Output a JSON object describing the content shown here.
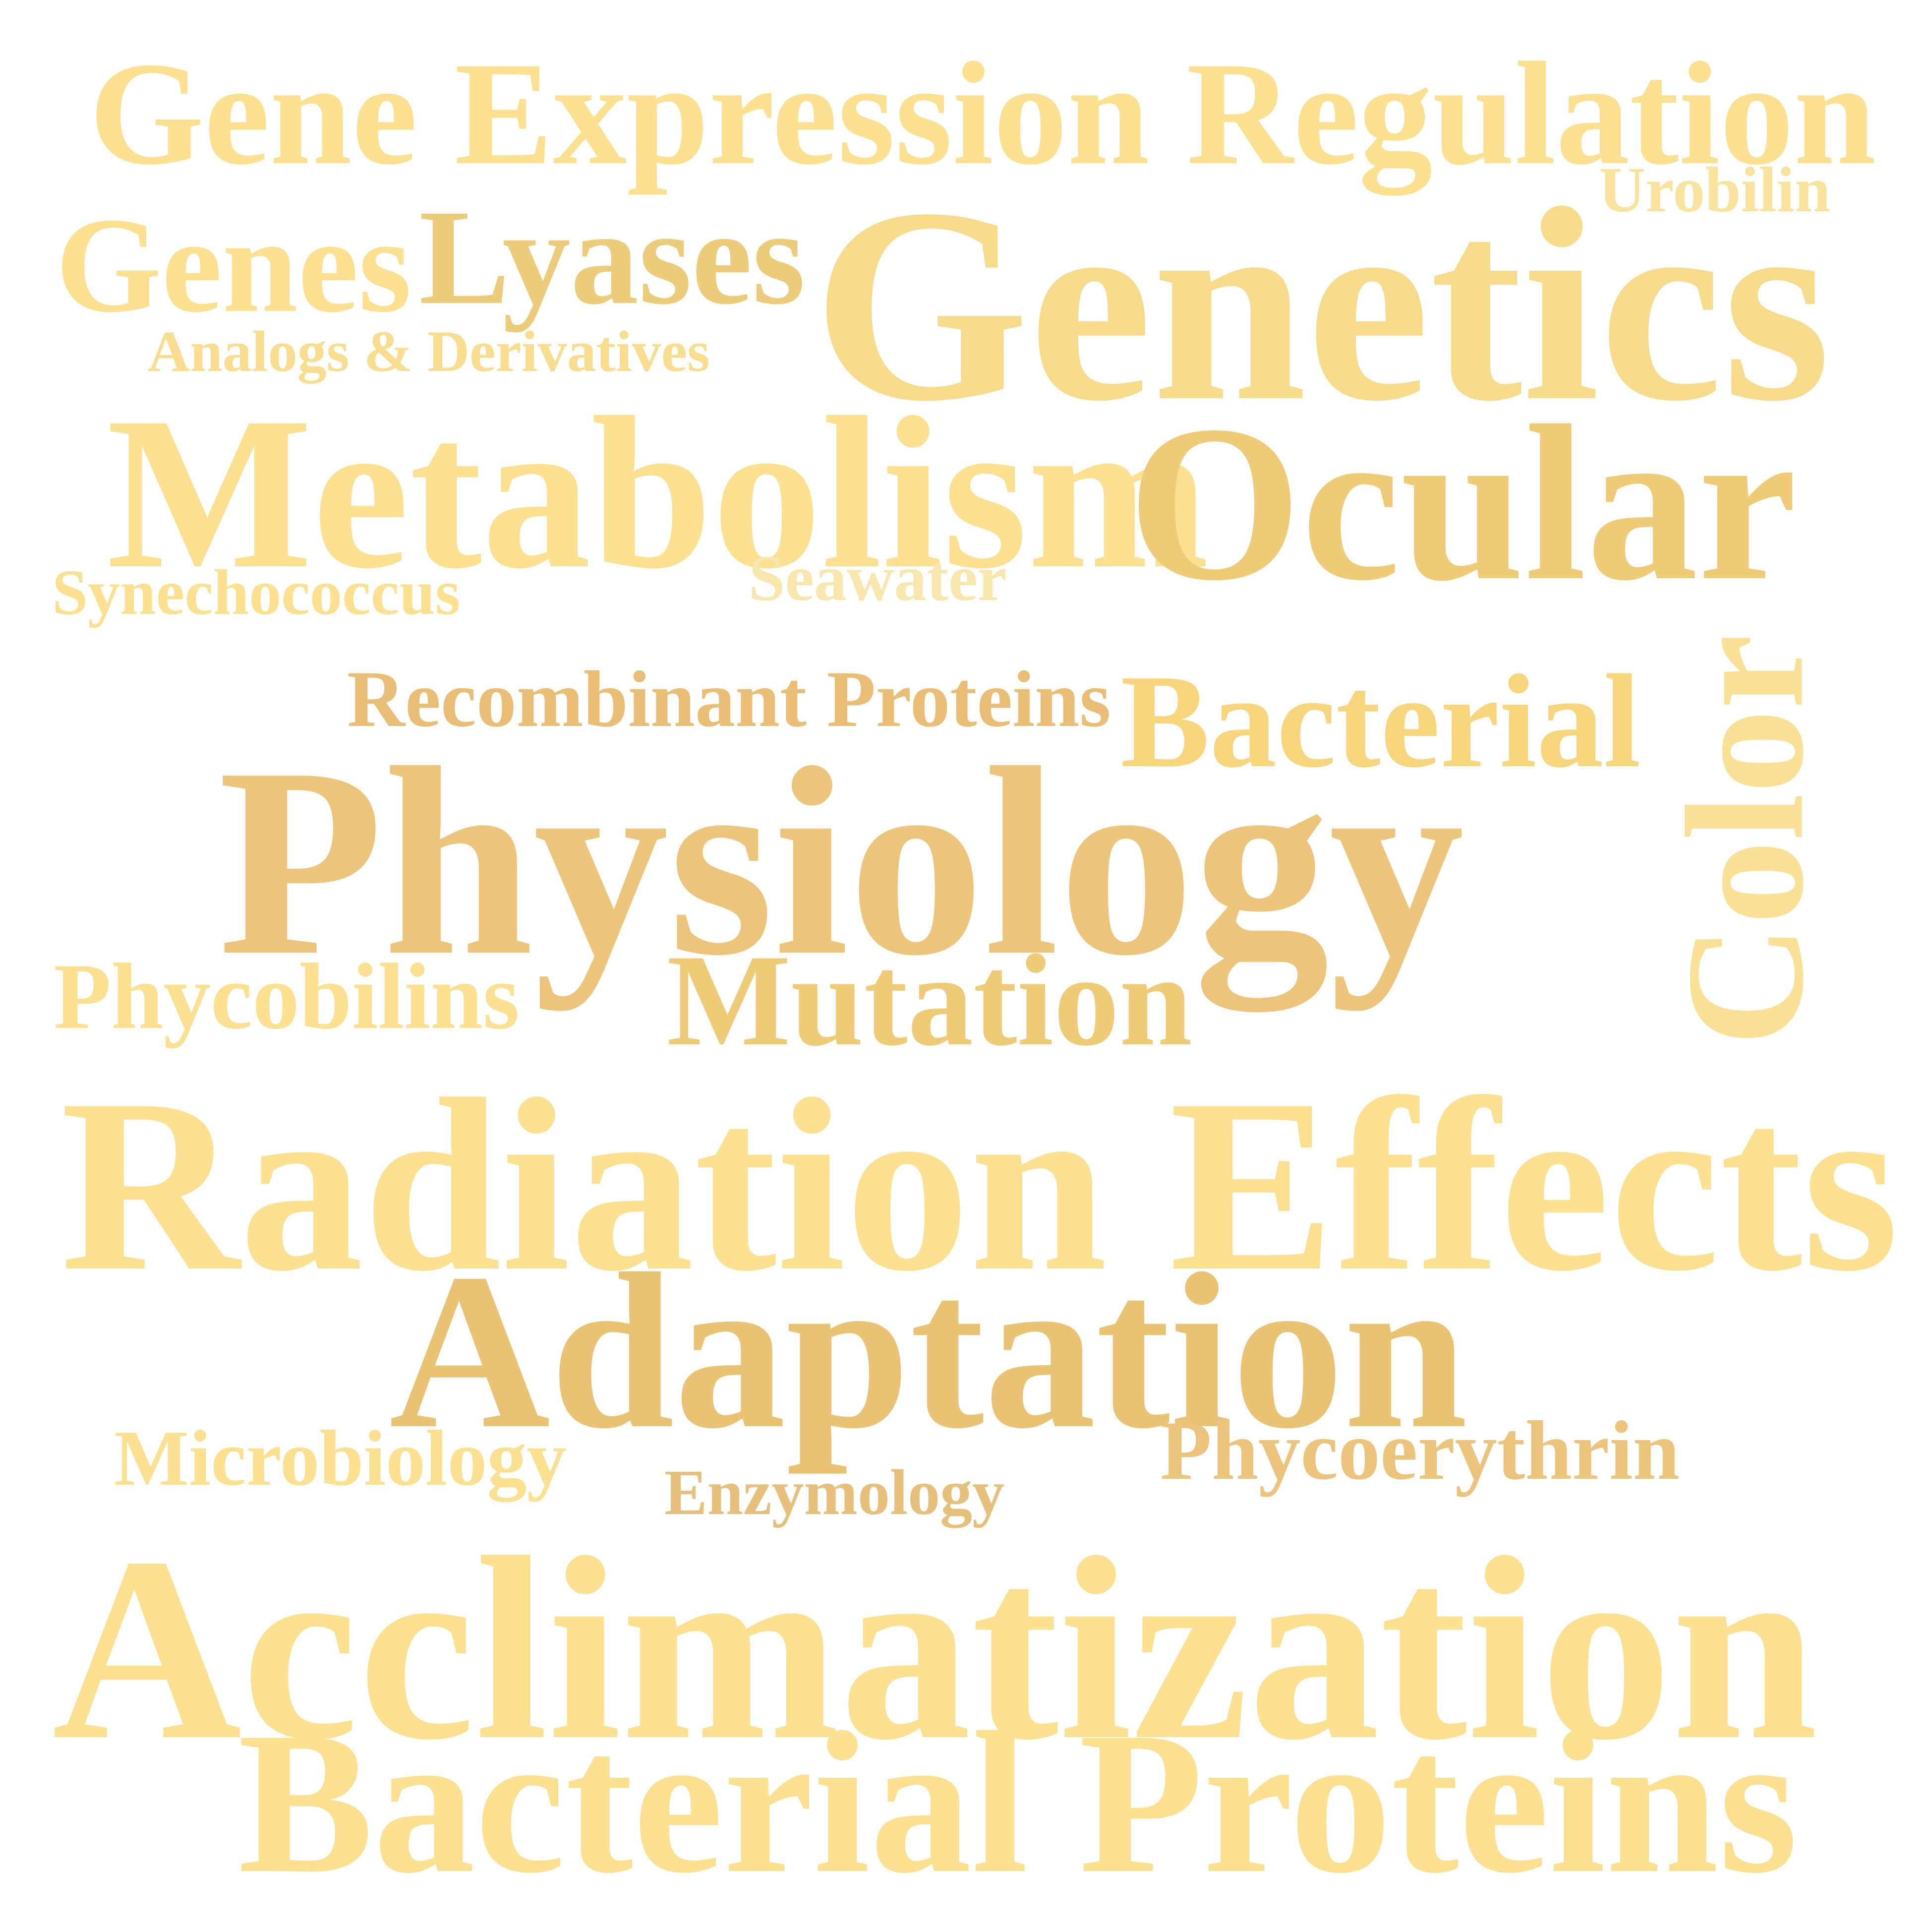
{
  "word_cloud": {
    "words": [
      {
        "id": "gene-expression-regulation",
        "text": "Gene Expression Regulation",
        "color": "#fbe08f",
        "orientation": "horizontal"
      },
      {
        "id": "urobilin",
        "text": "Urobilin",
        "color": "#f9e39c",
        "orientation": "horizontal"
      },
      {
        "id": "genes",
        "text": "Genes",
        "color": "#fbe08f",
        "orientation": "horizontal"
      },
      {
        "id": "lyases",
        "text": "Lyases",
        "color": "#eccc7b",
        "orientation": "horizontal"
      },
      {
        "id": "genetics",
        "text": "Genetics",
        "color": "#f6db8a",
        "orientation": "horizontal"
      },
      {
        "id": "analogs",
        "text": "Analogs & Derivatives",
        "color": "#f8dd8e",
        "orientation": "horizontal"
      },
      {
        "id": "metabolism",
        "text": "Metabolism",
        "color": "#fbe08f",
        "orientation": "horizontal"
      },
      {
        "id": "ocular",
        "text": "Ocular",
        "color": "#efcb78",
        "orientation": "horizontal"
      },
      {
        "id": "synechococcus",
        "text": "Synechococcus",
        "color": "#fbe08f",
        "orientation": "horizontal"
      },
      {
        "id": "seawater",
        "text": "Seawater",
        "color": "#f8e6ac",
        "orientation": "horizontal"
      },
      {
        "id": "recombinant-proteins",
        "text": "Recombinant Proteins",
        "color": "#e9bd74",
        "orientation": "horizontal"
      },
      {
        "id": "bacterial",
        "text": "Bacterial",
        "color": "#f8d57d",
        "orientation": "horizontal"
      },
      {
        "id": "color",
        "text": "Color",
        "color": "#f9e094",
        "orientation": "vertical"
      },
      {
        "id": "physiology",
        "text": "Physiology",
        "color": "#ecc57a",
        "orientation": "horizontal"
      },
      {
        "id": "phycobilins",
        "text": "Phycobilins",
        "color": "#fbe08f",
        "orientation": "horizontal"
      },
      {
        "id": "mutation",
        "text": "Mutation",
        "color": "#efcb78",
        "orientation": "horizontal"
      },
      {
        "id": "radiation-effects",
        "text": "Radiation Effects",
        "color": "#fbe08f",
        "orientation": "horizontal"
      },
      {
        "id": "adaptation",
        "text": "Adaptation",
        "color": "#e9c273",
        "orientation": "horizontal"
      },
      {
        "id": "microbiology",
        "text": "Microbiology",
        "color": "#fbe08f",
        "orientation": "horizontal"
      },
      {
        "id": "phycoerythrin",
        "text": "Phycoerythrin",
        "color": "#ebc37a",
        "orientation": "horizontal"
      },
      {
        "id": "enzymology",
        "text": "Enzymology",
        "color": "#e6c07a",
        "orientation": "horizontal"
      },
      {
        "id": "acclimatization",
        "text": "Acclimatization",
        "color": "#fbe08f",
        "orientation": "horizontal"
      },
      {
        "id": "bacterial-proteins",
        "text": "Bacterial Proteins",
        "color": "#fbe08f",
        "orientation": "horizontal"
      }
    ]
  }
}
